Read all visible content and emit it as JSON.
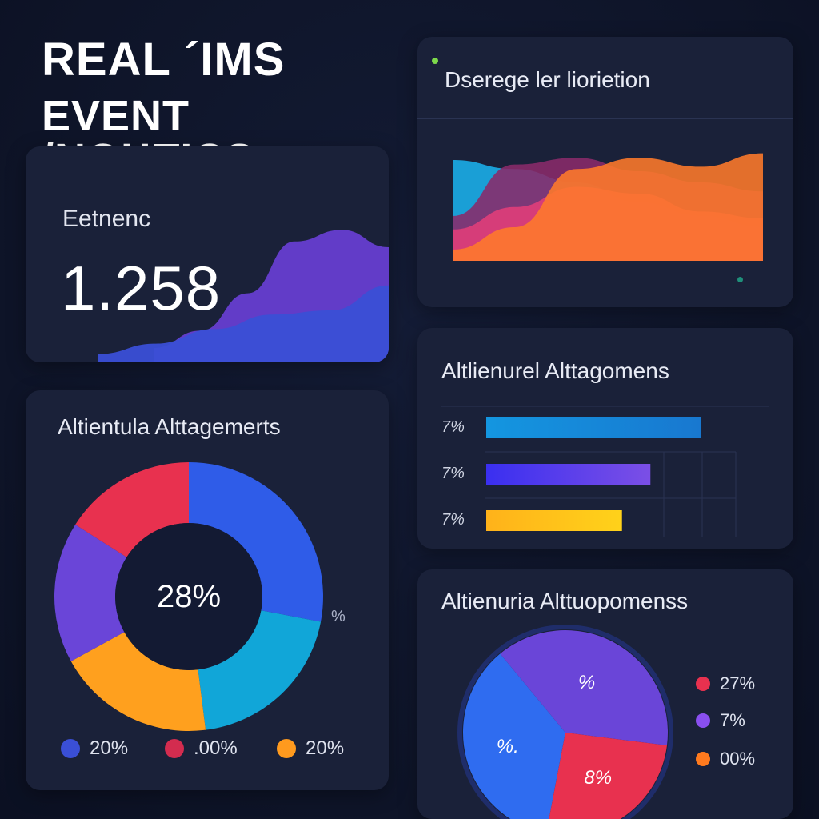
{
  "header": {
    "line1": "REAL ´IMS",
    "line2": "EVENT /NOЦTICS"
  },
  "colors": {
    "background": "#0f1529",
    "card": "#1a2139",
    "blue": "#2f63ee",
    "purple": "#6a45d8",
    "red": "#e8314f",
    "orange": "#ff9a1e",
    "cyan": "#11a6d8",
    "yellow": "#ffc21a"
  },
  "kpi_card": {
    "label": "Eetnenc",
    "value": "1.258"
  },
  "area_card": {
    "title": "Dserege ler liorietion"
  },
  "donut_card": {
    "title": "Altientula Alttagemerts",
    "center_label": "28%",
    "side_label": "%",
    "legend": [
      {
        "label": "20%",
        "color": "#3a4fd6"
      },
      {
        "label": ".00%",
        "color": "#d32c4f"
      },
      {
        "label": "20%",
        "color": "#ff9a1e"
      }
    ]
  },
  "bars_card": {
    "title": "Altlienurel Alttagomens"
  },
  "pie_card": {
    "title": "Altienuria Alttuopomenss",
    "legend": [
      {
        "label": "27%",
        "color": "#e8314f"
      },
      {
        "label": "7%",
        "color": "#8a4ff0"
      },
      {
        "label": "00%",
        "color": "#ff7a1e"
      }
    ]
  },
  "chart_data": [
    {
      "type": "area",
      "series": [
        {
          "color": "#6a3fd8",
          "values": [
            10,
            22,
            48,
            84,
            92,
            80
          ]
        },
        {
          "color": "#3a4fd6",
          "values": [
            8,
            18,
            32,
            46,
            50,
            74
          ]
        }
      ]
    },
    {
      "type": "area",
      "series": [
        {
          "color": "#1a9fd6",
          "values": [
            90,
            82,
            70,
            52,
            40,
            30
          ]
        },
        {
          "color": "#8a2a6a",
          "values": [
            40,
            86,
            92,
            80,
            70,
            62
          ]
        },
        {
          "color": "#e33e7a",
          "values": [
            28,
            48,
            66,
            60,
            44,
            38
          ]
        },
        {
          "color": "#ff7a2a",
          "values": [
            10,
            30,
            82,
            92,
            84,
            96
          ]
        }
      ]
    },
    {
      "type": "pie",
      "slices": [
        {
          "value": 28,
          "color": "#2f5ce8"
        },
        {
          "value": 20,
          "color": "#11a6d8"
        },
        {
          "value": 19,
          "color": "#ffa01e"
        },
        {
          "value": 17,
          "color": "#6a45d8"
        },
        {
          "value": 16,
          "color": "#e8314f"
        }
      ]
    },
    {
      "type": "bar",
      "categories": [
        "7%",
        "7%",
        "7%"
      ],
      "values": [
        0.68,
        0.52,
        0.43
      ],
      "colors": [
        [
          "#1496e0",
          "#1878d0"
        ],
        [
          "#3a2ff0",
          "#7b4fe6"
        ],
        [
          "#ffb21a",
          "#ffd21a"
        ]
      ]
    },
    {
      "type": "pie",
      "slices": [
        {
          "value": 36,
          "color": "#2f6cf0",
          "label": "%."
        },
        {
          "value": 38,
          "color": "#6a45d8",
          "label": "%"
        },
        {
          "value": 26,
          "color": "#e8314f",
          "label": "8%"
        }
      ]
    }
  ]
}
